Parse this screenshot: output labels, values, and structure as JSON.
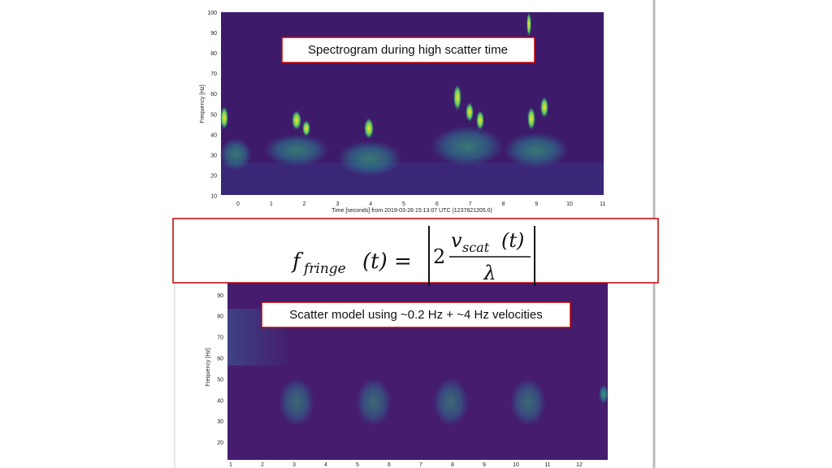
{
  "top_plot": {
    "caption": "Spectrogram during high scatter time",
    "y_label": "Frequency [Hz]",
    "y_ticks": [
      100,
      90,
      80,
      70,
      60,
      50,
      40,
      30,
      20,
      10
    ],
    "x_ticks": [
      0,
      1,
      2,
      3,
      4,
      5,
      6,
      7,
      8,
      9,
      10,
      11
    ],
    "x_label": "Time [seconds] from 2019-03-28 15:13:07 UTC (1237821205.0)"
  },
  "formula": {
    "lhs": "f",
    "lhs_sub": "fringe",
    "lhs_arg": "(t) =",
    "coef": "2",
    "num": "v",
    "num_sub": "scat",
    "num_arg": "(t)",
    "den": "λ"
  },
  "bottom_plot": {
    "caption": "Scatter model using ~0.2 Hz + ~4 Hz velocities",
    "y_label": "Frequency [Hz]",
    "y_ticks": [
      90,
      80,
      70,
      60,
      50,
      40,
      30,
      20
    ],
    "x_ticks": [
      1,
      2,
      3,
      4,
      5,
      6,
      7,
      8,
      9,
      10,
      11,
      12
    ]
  }
}
